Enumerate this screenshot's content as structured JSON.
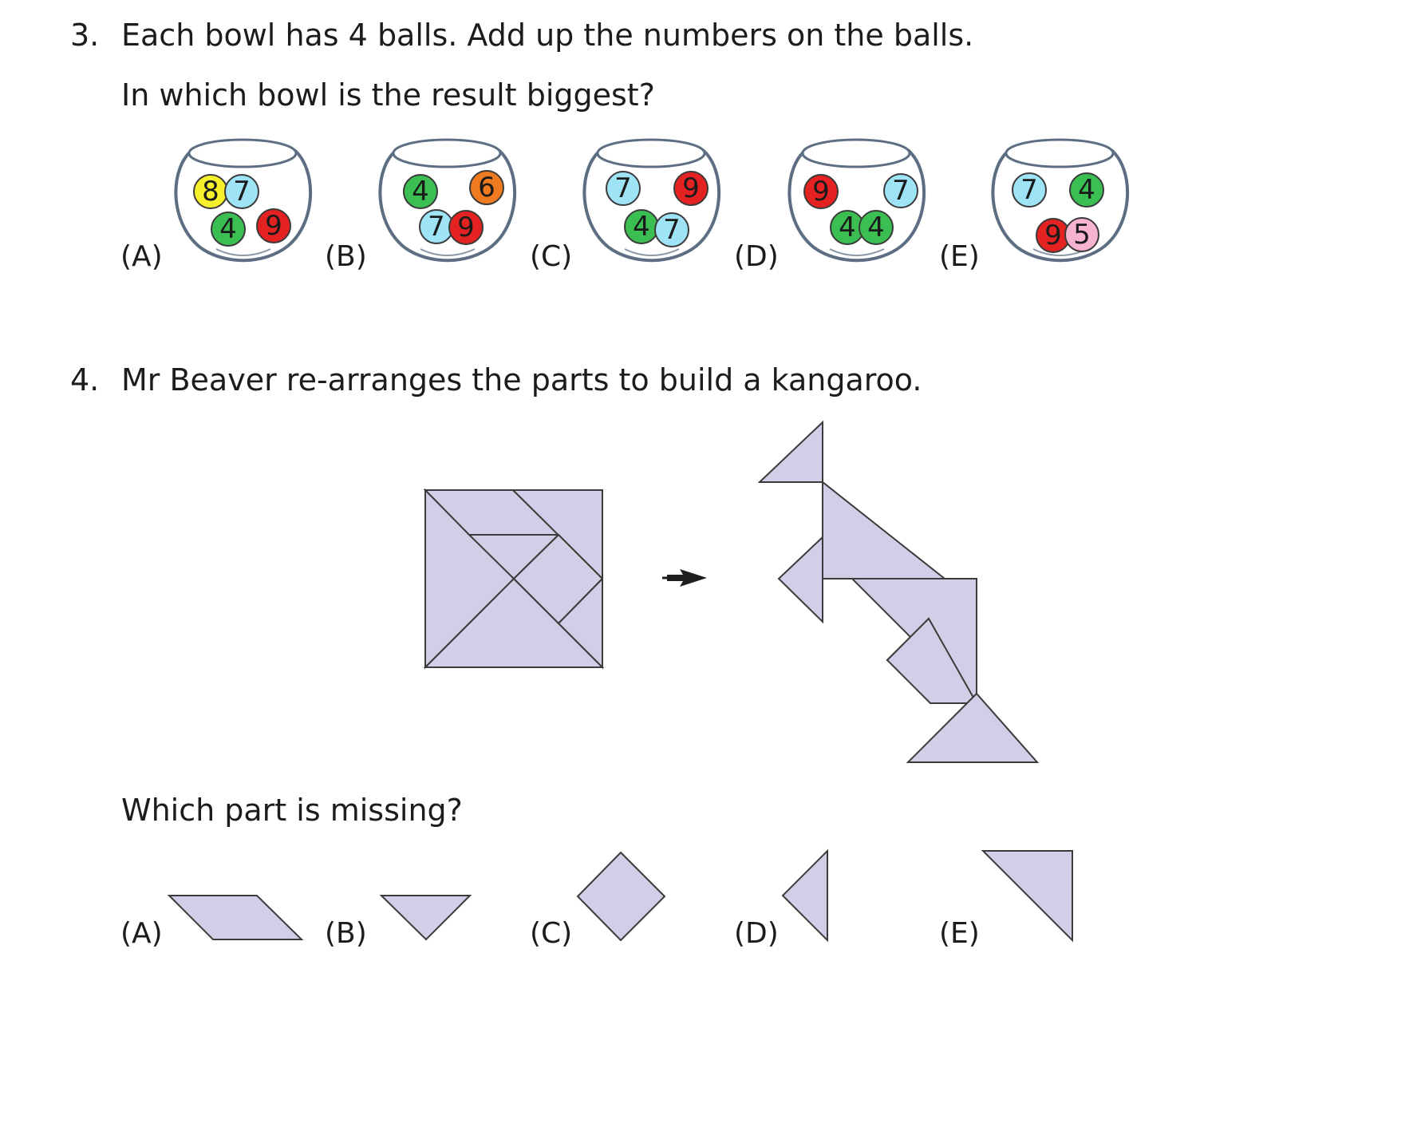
{
  "q3": {
    "number": "3.",
    "line1": "Each bowl has 4 balls. Add up the numbers on the balls.",
    "line2": "In which bowl is the result biggest?",
    "options": [
      {
        "label": "(A)",
        "balls": [
          {
            "n": "8",
            "color": "#f6ef2c"
          },
          {
            "n": "7",
            "color": "#9fe3f7"
          },
          {
            "n": "4",
            "color": "#3bbf52"
          },
          {
            "n": "9",
            "color": "#e52222"
          }
        ]
      },
      {
        "label": "(B)",
        "balls": [
          {
            "n": "4",
            "color": "#3bbf52"
          },
          {
            "n": "6",
            "color": "#f07a1f"
          },
          {
            "n": "7",
            "color": "#9fe3f7"
          },
          {
            "n": "9",
            "color": "#e52222"
          }
        ]
      },
      {
        "label": "(C)",
        "balls": [
          {
            "n": "7",
            "color": "#9fe3f7"
          },
          {
            "n": "9",
            "color": "#e52222"
          },
          {
            "n": "4",
            "color": "#3bbf52"
          },
          {
            "n": "7",
            "color": "#9fe3f7"
          }
        ]
      },
      {
        "label": "(D)",
        "balls": [
          {
            "n": "9",
            "color": "#e52222"
          },
          {
            "n": "7",
            "color": "#9fe3f7"
          },
          {
            "n": "4",
            "color": "#3bbf52"
          },
          {
            "n": "4",
            "color": "#3bbf52"
          }
        ]
      },
      {
        "label": "(E)",
        "balls": [
          {
            "n": "7",
            "color": "#9fe3f7"
          },
          {
            "n": "4",
            "color": "#3bbf52"
          },
          {
            "n": "9",
            "color": "#e52222"
          },
          {
            "n": "5",
            "color": "#f7b3cf"
          }
        ]
      }
    ]
  },
  "q4": {
    "number": "4.",
    "line1": "Mr Beaver re-arranges the parts to build a kangaroo.",
    "question": "Which part is missing?",
    "arrow": "right-arrow-icon",
    "piece_color": "#d0cfe7",
    "options": [
      {
        "label": "(A)",
        "shape": "parallelogram"
      },
      {
        "label": "(B)",
        "shape": "small-triangle-down"
      },
      {
        "label": "(C)",
        "shape": "square-diamond"
      },
      {
        "label": "(D)",
        "shape": "small-triangle-left"
      },
      {
        "label": "(E)",
        "shape": "large-triangle"
      }
    ]
  }
}
